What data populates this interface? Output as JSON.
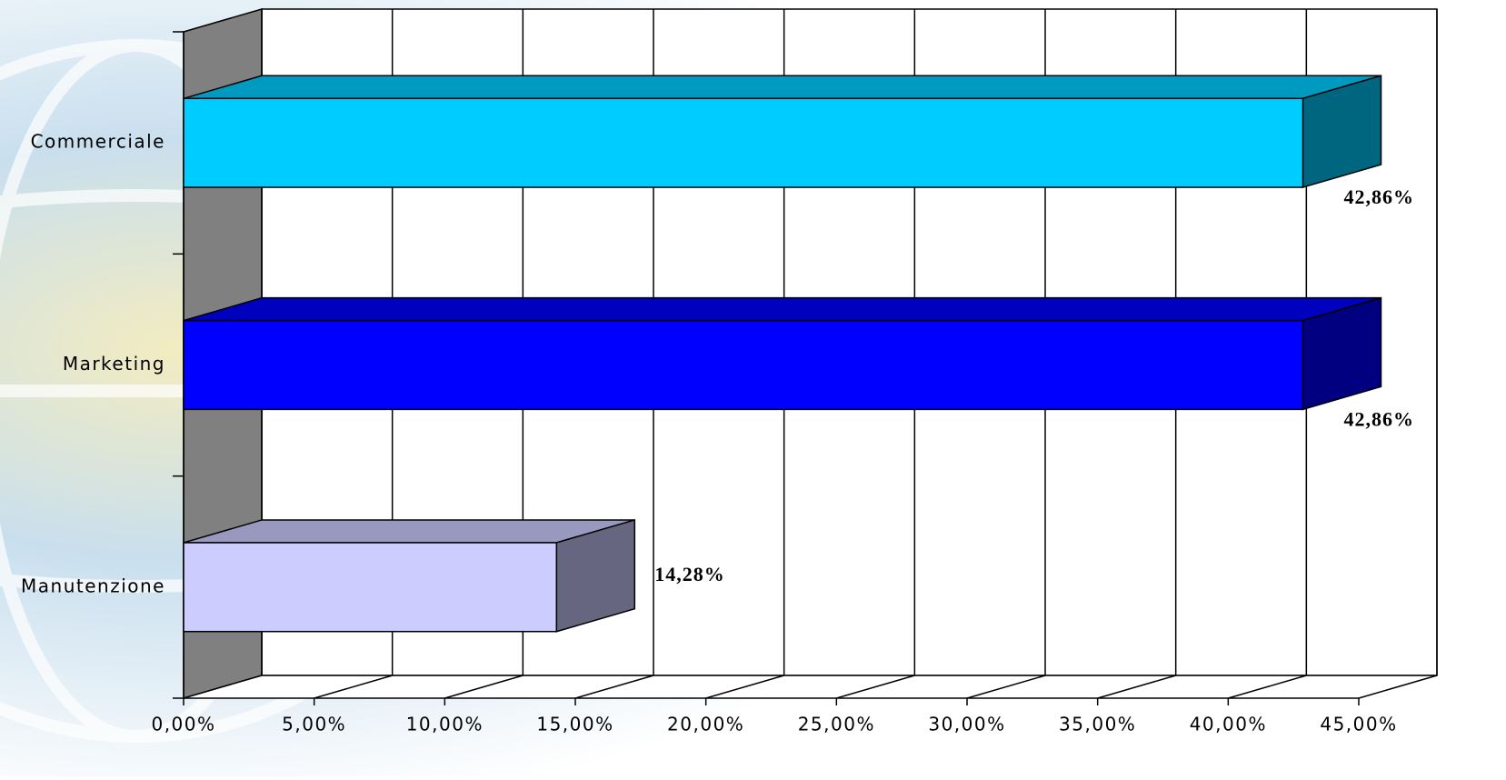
{
  "chart_data": {
    "type": "bar3d",
    "orientation": "horizontal",
    "categories": [
      "Commerciale",
      "Marketing",
      "Manutenzione"
    ],
    "values": [
      42.86,
      42.86,
      14.28
    ],
    "value_labels": [
      "42,86%",
      "42,86%",
      "14,28%"
    ],
    "colors": [
      "#00ccff",
      "#0000ff",
      "#ccccff"
    ],
    "xlim": [
      0,
      45
    ],
    "xticks": [
      {
        "value": 0,
        "label": "0,00%"
      },
      {
        "value": 5,
        "label": "5,00%"
      },
      {
        "value": 10,
        "label": "10,00%"
      },
      {
        "value": 15,
        "label": "15,00%"
      },
      {
        "value": 20,
        "label": "20,00%"
      },
      {
        "value": 25,
        "label": "25,00%"
      },
      {
        "value": 30,
        "label": "30,00%"
      },
      {
        "value": 35,
        "label": "35,00%"
      },
      {
        "value": 40,
        "label": "40,00%"
      },
      {
        "value": 45,
        "label": "45,00%"
      }
    ],
    "grid": true
  }
}
